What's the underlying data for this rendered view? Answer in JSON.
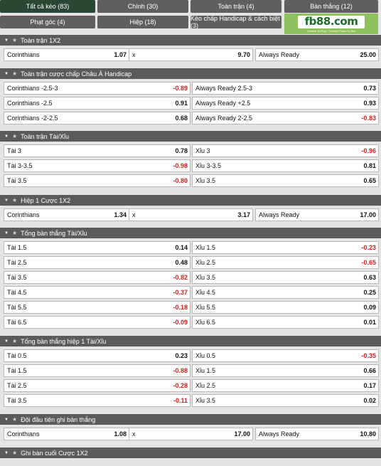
{
  "tabs": [
    {
      "label": "Tất cả kèo (83)",
      "active": true
    },
    {
      "label": "Chính (30)"
    },
    {
      "label": "Toàn trận (4)"
    },
    {
      "label": "Bàn thắng (12)"
    },
    {
      "label": "Phạt góc (4)"
    },
    {
      "label": "Hiệp (18)"
    },
    {
      "label": "Kèo chấp Handicap & cách biệt (3)"
    }
  ],
  "logo": {
    "text": "fb88.com",
    "tagline": "Games To Play · Trusted Place To Bet"
  },
  "sections": [
    {
      "title": "Toàn trận 1X2",
      "kind": "three",
      "rows": [
        [
          {
            "label": "Corinthians",
            "odds": "1.07"
          },
          {
            "label": "x",
            "odds": "9.70"
          },
          {
            "label": "Always Ready",
            "odds": "25.00"
          }
        ]
      ]
    },
    {
      "title": "Toàn trận cược chấp Châu Á Handicap",
      "kind": "two",
      "rows": [
        [
          {
            "label": "Corinthians -2.5-3",
            "odds": "-0.89"
          },
          {
            "label": "Always Ready 2.5-3",
            "odds": "0.73"
          }
        ],
        [
          {
            "label": "Corinthians -2.5",
            "odds": "0.91"
          },
          {
            "label": "Always Ready +2.5",
            "odds": "0.93"
          }
        ],
        [
          {
            "label": "Corinthians -2-2.5",
            "odds": "0.68"
          },
          {
            "label": "Always Ready 2-2.5",
            "odds": "-0.83"
          }
        ]
      ]
    },
    {
      "title": "Toàn trận Tài/Xỉu",
      "kind": "two",
      "rows": [
        [
          {
            "label": "Tài 3",
            "odds": "0.78"
          },
          {
            "label": "Xỉu 3",
            "odds": "-0.96"
          }
        ],
        [
          {
            "label": "Tài 3-3.5",
            "odds": "-0.98"
          },
          {
            "label": "Xỉu 3-3.5",
            "odds": "0.81"
          }
        ],
        [
          {
            "label": "Tài 3.5",
            "odds": "-0.80"
          },
          {
            "label": "Xỉu 3.5",
            "odds": "0.65"
          }
        ]
      ]
    },
    {
      "title": "Hiệp 1 Cược 1X2",
      "kind": "three",
      "rows": [
        [
          {
            "label": "Corinthians",
            "odds": "1.34"
          },
          {
            "label": "x",
            "odds": "3.17"
          },
          {
            "label": "Always Ready",
            "odds": "17.00"
          }
        ]
      ]
    },
    {
      "title": "Tổng bàn thắng Tài/Xỉu",
      "kind": "two",
      "rows": [
        [
          {
            "label": "Tài 1.5",
            "odds": "0.14"
          },
          {
            "label": "Xỉu 1.5",
            "odds": "-0.23"
          }
        ],
        [
          {
            "label": "Tài 2.5",
            "odds": "0.48"
          },
          {
            "label": "Xỉu 2.5",
            "odds": "-0.65"
          }
        ],
        [
          {
            "label": "Tài 3.5",
            "odds": "-0.82"
          },
          {
            "label": "Xỉu 3.5",
            "odds": "0.63"
          }
        ],
        [
          {
            "label": "Tài 4.5",
            "odds": "-0.37"
          },
          {
            "label": "Xỉu 4.5",
            "odds": "0.25"
          }
        ],
        [
          {
            "label": "Tài 5.5",
            "odds": "-0.18"
          },
          {
            "label": "Xỉu 5.5",
            "odds": "0.09"
          }
        ],
        [
          {
            "label": "Tài 6.5",
            "odds": "-0.09"
          },
          {
            "label": "Xỉu 6.5",
            "odds": "0.01"
          }
        ]
      ]
    },
    {
      "title": "Tổng bàn thắng hiệp 1 Tài/Xỉu",
      "kind": "two",
      "rows": [
        [
          {
            "label": "Tài 0.5",
            "odds": "0.23"
          },
          {
            "label": "Xỉu 0.5",
            "odds": "-0.35"
          }
        ],
        [
          {
            "label": "Tài 1.5",
            "odds": "-0.88"
          },
          {
            "label": "Xỉu 1.5",
            "odds": "0.66"
          }
        ],
        [
          {
            "label": "Tài 2.5",
            "odds": "-0.28"
          },
          {
            "label": "Xỉu 2.5",
            "odds": "0.17"
          }
        ],
        [
          {
            "label": "Tài 3.5",
            "odds": "-0.11"
          },
          {
            "label": "Xỉu 3.5",
            "odds": "0.02"
          }
        ]
      ]
    },
    {
      "title": "Đội đầu tiên ghi bàn thắng",
      "kind": "three",
      "rows": [
        [
          {
            "label": "Corinthians",
            "odds": "1.08"
          },
          {
            "label": "x",
            "odds": "17.00"
          },
          {
            "label": "Always Ready",
            "odds": "10.80"
          }
        ]
      ]
    },
    {
      "title": "Ghi bàn cuối Cược 1X2",
      "kind": "three",
      "rows": []
    }
  ],
  "colors": {
    "header": "#5b5b5b",
    "active_tab": "#2a4735",
    "tab": "#5f5f5f",
    "negative": "#d32020"
  }
}
